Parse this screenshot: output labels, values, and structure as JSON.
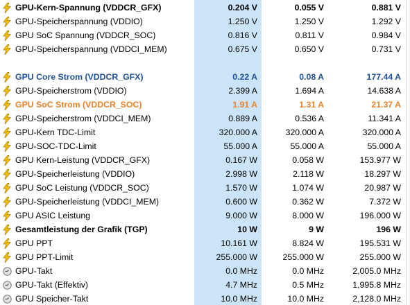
{
  "groups": [
    {
      "rows": [
        {
          "icon": "power",
          "bold": true,
          "label": "GPU-Kern-Spannung (VDDCR_GFX)",
          "current": "0.204 V",
          "min": "0.055 V",
          "max": "0.881 V"
        },
        {
          "icon": "power",
          "label": "GPU-Speicherspannung (VDDIO)",
          "current": "1.250 V",
          "min": "1.250 V",
          "max": "1.292 V"
        },
        {
          "icon": "power",
          "label": "GPU SoC Spannung (VDDCR_SOC)",
          "current": "0.816 V",
          "min": "0.811 V",
          "max": "0.984 V"
        },
        {
          "icon": "power",
          "label": "GPU-Speicherspannung (VDDCI_MEM)",
          "current": "0.675 V",
          "min": "0.650 V",
          "max": "0.731 V"
        }
      ]
    },
    {
      "rows": [
        {
          "icon": "power",
          "bold": true,
          "color": "#1f4f96",
          "label": "GPU Core Strom (VDDCR_GFX)",
          "current": "0.22 A",
          "min": "0.08 A",
          "max": "177.44 A"
        },
        {
          "icon": "power",
          "label": "GPU-Speicherstrom (VDDIO)",
          "current": "2.399 A",
          "min": "1.694 A",
          "max": "14.638 A"
        },
        {
          "icon": "power",
          "bold": true,
          "color": "#e8822a",
          "label": "GPU SoC Strom (VDDCR_SOC)",
          "current": "1.91 A",
          "min": "1.31 A",
          "max": "21.37 A"
        },
        {
          "icon": "power",
          "label": "GPU-Speicherstrom (VDDCI_MEM)",
          "current": "0.889 A",
          "min": "0.536 A",
          "max": "11.341 A"
        },
        {
          "icon": "power",
          "label": "GPU-Kern TDC-Limit",
          "current": "320.000 A",
          "min": "320.000 A",
          "max": "320.000 A"
        },
        {
          "icon": "power",
          "label": "GPU-SOC-TDC-Limit",
          "current": "55.000 A",
          "min": "55.000 A",
          "max": "55.000 A"
        },
        {
          "icon": "power",
          "label": "GPU Kern-Leistung (VDDCR_GFX)",
          "current": "0.167 W",
          "min": "0.058 W",
          "max": "153.977 W"
        },
        {
          "icon": "power",
          "label": "GPU-Speicherleistung (VDDIO)",
          "current": "2.998 W",
          "min": "2.118 W",
          "max": "18.297 W"
        },
        {
          "icon": "power",
          "label": "GPU SoC Leistung (VDDCR_SOC)",
          "current": "1.570 W",
          "min": "1.074 W",
          "max": "20.987 W"
        },
        {
          "icon": "power",
          "label": "GPU-Speicherleistung (VDDCI_MEM)",
          "current": "0.600 W",
          "min": "0.362 W",
          "max": "7.372 W"
        },
        {
          "icon": "power",
          "label": "GPU ASIC Leistung",
          "current": "9.000 W",
          "min": "8.000 W",
          "max": "196.000 W"
        },
        {
          "icon": "power",
          "bold": true,
          "label": "Gesamtleistung der Grafik (TGP)",
          "current": "10 W",
          "min": "9 W",
          "max": "196 W"
        },
        {
          "icon": "power",
          "label": "GPU PPT",
          "current": "10.161 W",
          "min": "8.824 W",
          "max": "195.531 W"
        },
        {
          "icon": "power",
          "label": "GPU PPT-Limit",
          "current": "255.000 W",
          "min": "255.000 W",
          "max": "255.000 W"
        },
        {
          "icon": "clock",
          "label": "GPU-Takt",
          "current": "0.0 MHz",
          "min": "0.0 MHz",
          "max": "2,005.0 MHz"
        },
        {
          "icon": "clock",
          "label": "GPU-Takt (Effektiv)",
          "current": "4.7 MHz",
          "min": "0.5 MHz",
          "max": "1,995.8 MHz"
        },
        {
          "icon": "clock",
          "label": "GPU Speicher-Takt",
          "current": "10.0 MHz",
          "min": "10.0 MHz",
          "max": "2,128.0 MHz"
        }
      ]
    }
  ]
}
